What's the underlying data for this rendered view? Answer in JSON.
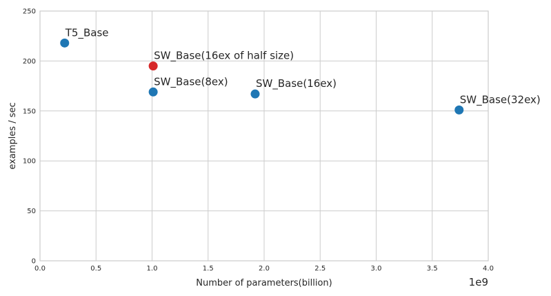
{
  "chart_data": {
    "type": "scatter",
    "title": "",
    "xlabel": "Number of parameters(billion)",
    "ylabel": "examples / sec",
    "x_offset_label": "1e9",
    "xlim": [
      0.0,
      4.0
    ],
    "ylim": [
      0,
      250
    ],
    "x_ticks": [
      "0.0",
      "0.5",
      "1.0",
      "1.5",
      "2.0",
      "2.5",
      "3.0",
      "3.5",
      "4.0"
    ],
    "y_ticks": [
      "0",
      "50",
      "100",
      "150",
      "200",
      "250"
    ],
    "grid": true,
    "points": [
      {
        "label": "T5_Base",
        "x": 0.22,
        "y": 218,
        "color": "#1f77b4"
      },
      {
        "label": "SW_Base(16ex of half size)",
        "x": 1.01,
        "y": 195,
        "color": "#d62728"
      },
      {
        "label": "SW_Base(8ex)",
        "x": 1.01,
        "y": 169,
        "color": "#1f77b4"
      },
      {
        "label": "SW_Base(16ex)",
        "x": 1.92,
        "y": 167,
        "color": "#1f77b4"
      },
      {
        "label": "SW_Base(32ex)",
        "x": 3.74,
        "y": 151,
        "color": "#1f77b4"
      }
    ]
  }
}
